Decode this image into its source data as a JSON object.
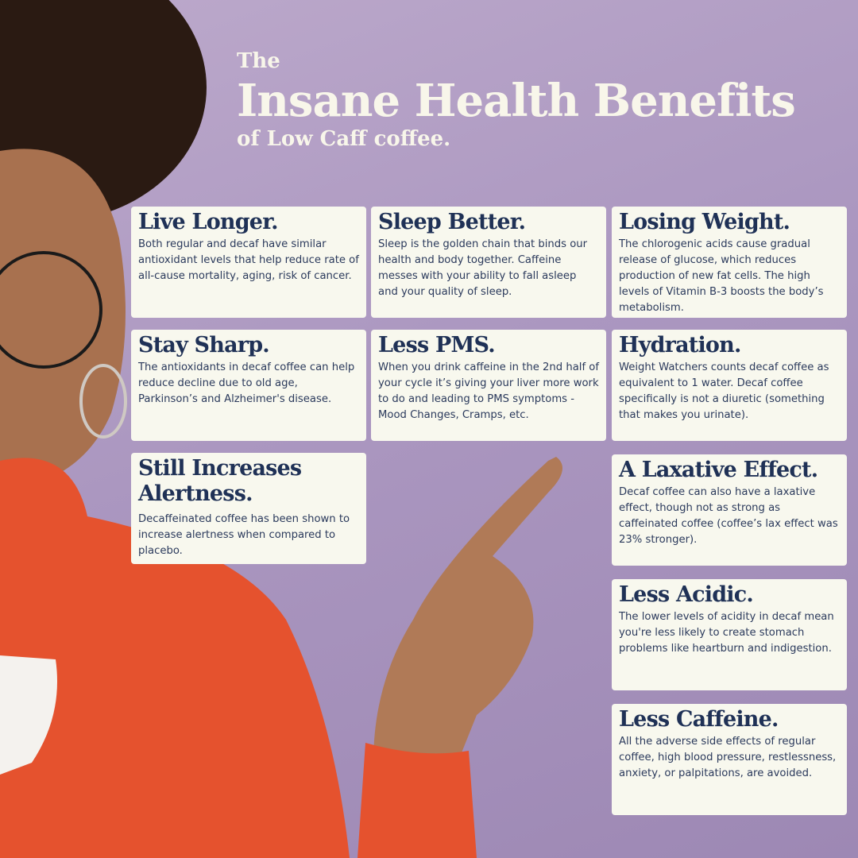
{
  "header": {
    "line1": "The",
    "line2": "Insane Health Benefits",
    "line3": "of Low Caff coffee."
  },
  "colors": {
    "card_bg": "#f8f8ee",
    "heading": "#1f3156",
    "title": "#f8f6ea",
    "background": "#ab97c0",
    "sweater": "#e5522e"
  },
  "cards": [
    {
      "title": "Live Longer.",
      "body": "Both regular and decaf have  similar antioxidant levels that help reduce rate of all-cause mortality, aging, risk of cancer."
    },
    {
      "title": "Sleep Better.",
      "body": "Sleep is the golden chain that binds our health and body together. Caffeine messes with your ability to fall asleep and your quality of sleep."
    },
    {
      "title": "Losing Weight.",
      "body": "The chlorogenic acids cause gradual release of glucose, which reduces production of new fat cells. The high levels of Vitamin B-3 boosts the body’s metabolism."
    },
    {
      "title": "Stay Sharp.",
      "body": "The antioxidants in decaf coffee can help reduce decline due to old age, Parkinson’s and Alzheimer's disease."
    },
    {
      "title": "Less PMS.",
      "body": "When you drink caffeine in the 2nd half of your cycle it’s giving your liver more work to do and leading to PMS symptoms - Mood Changes, Cramps, etc."
    },
    {
      "title": "Hydration.",
      "body": "Weight Watchers counts decaf coffee as equivalent to 1 water. Decaf coffee specifically is not a diuretic (something that makes you urinate)."
    },
    {
      "title": "Still Increases Alertness.",
      "body": "Decaffeinated coffee has been shown to increase alertness when compared to placebo."
    },
    {
      "title": "A Laxative Effect.",
      "body": "Decaf coffee can also have a laxative effect, though not as strong as caffeinated coffee (coffee’s lax effect was 23% stronger)."
    },
    {
      "title": "Less Acidic.",
      "body": "The lower levels of acidity in decaf mean you're less likely to create stomach problems like heartburn and indigestion."
    },
    {
      "title": "Less Caffeine.",
      "body": "All the adverse side effects of regular coffee, high blood pressure, restlessness, anxiety, or palpitations, are avoided."
    }
  ]
}
